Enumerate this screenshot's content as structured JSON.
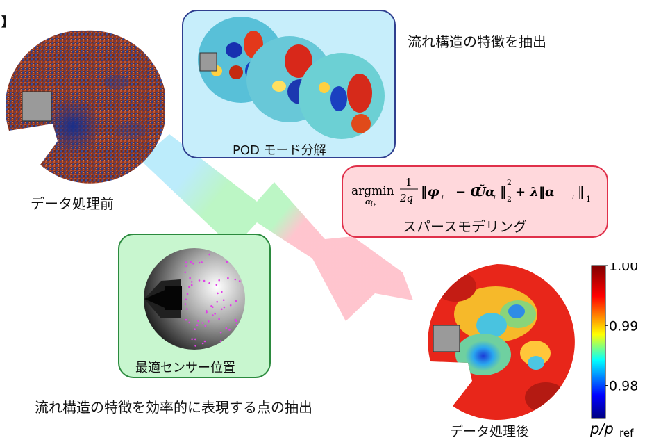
{
  "corner_mark": "】",
  "labels": {
    "raw": "データ処理前",
    "pod_title": "POD モード分解",
    "feature": "流れ構造の特徴を抽出",
    "sparse": "スパースモデリング",
    "sensor": "最適センサー位置",
    "bottom": "流れ構造の特徴を効率的に表現する点の抽出",
    "processed": "データ処理後"
  },
  "formula": {
    "op": "argmin",
    "op_sub": "α",
    "op_subsub": "l",
    "op_subsubsub": "h",
    "frac_num": "1",
    "frac_den": "2q",
    "body": "‖φ",
    "minus": "− C",
    "u_tilde": "Ũ",
    "alpha": "α",
    "sq_sup": "2",
    "sq_sub": "2",
    "plus_lambda": "+ λ‖α",
    "l1": "1"
  },
  "colorbar": {
    "ticks": [
      "1.00",
      "0.99",
      "0.98"
    ],
    "tick_values": [
      1.0,
      0.99,
      0.98
    ],
    "label_main": "p/p",
    "label_sub": "ref",
    "colors": [
      "#7f0000",
      "#ff0000",
      "#ffff00",
      "#00ffff",
      "#0000ff",
      "#00007f"
    ]
  },
  "colors": {
    "pod_box_fill": "#c7eefb",
    "pod_box_stroke": "#2f3f8f",
    "sparse_box_fill": "#ffd8dc",
    "sparse_box_stroke": "#e0304a",
    "sensor_box_fill": "#c8f6cf",
    "sensor_box_stroke": "#2b8a3e",
    "arrow_blue": "#b8ebfb",
    "arrow_green": "#b9f5c2",
    "arrow_pink": "#ffc2cc",
    "sensor_dot": "#e040e8"
  }
}
